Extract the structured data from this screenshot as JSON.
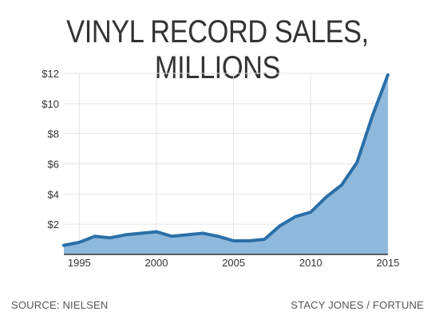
{
  "chart_data": {
    "type": "area",
    "title": "VINYL RECORD SALES, MILLIONS",
    "x": [
      1994,
      1995,
      1996,
      1997,
      1998,
      1999,
      2000,
      2001,
      2002,
      2003,
      2004,
      2005,
      2006,
      2007,
      2008,
      2009,
      2010,
      2011,
      2012,
      2013,
      2014,
      2015
    ],
    "values": [
      0.6,
      0.8,
      1.2,
      1.1,
      1.3,
      1.4,
      1.5,
      1.2,
      1.3,
      1.4,
      1.2,
      0.9,
      0.9,
      1.0,
      1.9,
      2.5,
      2.8,
      3.8,
      4.6,
      6.1,
      9.2,
      11.9
    ],
    "xlim": [
      1994,
      2015
    ],
    "ylim": [
      0,
      12
    ],
    "x_ticks": [
      "1995",
      "2000",
      "2005",
      "2010",
      "2015"
    ],
    "y_ticks": [
      "$2",
      "$4",
      "$6",
      "$8",
      "$10",
      "$12"
    ],
    "grid": true,
    "colors": {
      "line": "#2a6fa8",
      "fill": "#8fb9dc",
      "grid": "#e3e3e3",
      "axis": "#333333"
    }
  },
  "footer": {
    "source": "SOURCE: NIELSEN",
    "credit": "STACY JONES / FORTUNE"
  }
}
